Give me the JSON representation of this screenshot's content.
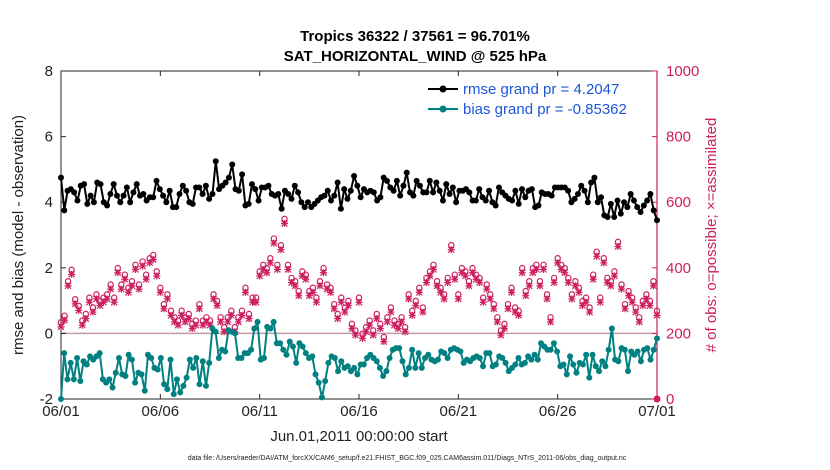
{
  "chart_data": {
    "type": "line",
    "title": "Tropics 36322 / 37561 = 96.701%",
    "subtitle": "SAT_HORIZONTAL_WIND @ 525 hPa",
    "xlabel": "Jun.01,2011 00:00:00 start",
    "ylabel_left": "rmse and bias (model - observation)",
    "ylabel_right": "# of obs: o=possible; ×=assimilated",
    "x_tick_labels": [
      "06/01",
      "06/06",
      "06/11",
      "06/16",
      "06/21",
      "06/26",
      "07/01"
    ],
    "x_tick_days": [
      0,
      5,
      10,
      15,
      20,
      25,
      30
    ],
    "xlim": [
      0,
      30
    ],
    "ylim_left": [
      -2,
      8
    ],
    "y_ticks_left": [
      -2,
      0,
      2,
      4,
      6,
      8
    ],
    "ylim_right": [
      0,
      1000
    ],
    "y_ticks_right": [
      0,
      200,
      400,
      600,
      800,
      1000
    ],
    "legend_position": "top-right",
    "series": [
      {
        "name": "rmse grand pr = 4.2047",
        "axis": "left",
        "color": "#000000",
        "values": [
          4.75,
          3.75,
          4.35,
          4.4,
          4.3,
          4.05,
          4.5,
          4.55,
          3.95,
          4.2,
          4.0,
          4.6,
          4.55,
          4.0,
          3.9,
          4.25,
          4.55,
          4.2,
          4.0,
          4.2,
          4.45,
          4.0,
          4.3,
          4.55,
          4.2,
          4.25,
          4.05,
          4.15,
          4.15,
          4.65,
          4.4,
          4.2,
          4.0,
          4.35,
          3.85,
          3.85,
          4.25,
          4.5,
          4.35,
          4.0,
          3.95,
          4.45,
          4.45,
          4.25,
          4.5,
          4.1,
          4.25,
          5.25,
          4.4,
          4.5,
          4.6,
          4.75,
          5.15,
          4.4,
          4.35,
          4.85,
          3.9,
          3.95,
          4.55,
          4.4,
          4.05,
          4.45,
          4.45,
          4.5,
          4.25,
          4.2,
          4.25,
          3.8,
          4.35,
          4.25,
          4.1,
          4.5,
          4.3,
          4.0,
          3.85,
          4.0,
          3.85,
          3.95,
          4.05,
          4.15,
          4.2,
          4.35,
          4.05,
          4.2,
          4.6,
          3.8,
          4.4,
          4.1,
          4.35,
          4.8,
          4.5,
          4.15,
          4.4,
          4.3,
          4.35,
          4.3,
          4.05,
          4.15,
          4.75,
          4.65,
          4.45,
          4.35,
          4.65,
          4.2,
          4.5,
          4.9,
          4.3,
          4.2,
          4.65,
          4.5,
          4.3,
          4.3,
          4.65,
          4.3,
          4.6,
          4.35,
          4.05,
          4.55,
          4.25,
          4.45,
          4.0,
          4.35,
          4.35,
          4.4,
          4.3,
          4.05,
          4.05,
          4.4,
          4.15,
          4.05,
          4.35,
          4.0,
          3.9,
          4.45,
          4.3,
          4.2,
          4.1,
          4.05,
          4.35,
          3.95,
          4.4,
          4.15,
          4.35,
          4.4,
          3.85,
          3.9,
          4.3,
          4.25,
          4.25,
          4.2,
          4.45,
          4.45,
          4.45,
          4.45,
          4.35,
          4.0,
          4.1,
          4.25,
          4.5,
          4.35,
          4.0,
          4.6,
          4.75,
          4.0,
          4.15,
          3.6,
          3.55,
          3.95,
          3.55,
          4.05,
          3.65,
          4.0,
          3.85,
          4.25,
          4.05,
          3.85,
          3.7,
          3.9,
          4.05,
          4.25,
          3.75,
          3.45
        ]
      },
      {
        "name": "bias grand pr = -0.85362",
        "axis": "left",
        "color": "#008080",
        "values": [
          -2.0,
          -0.6,
          -1.4,
          -0.9,
          -1.4,
          -0.75,
          -1.45,
          -0.85,
          -0.95,
          -0.7,
          -0.8,
          -0.7,
          -0.6,
          -1.4,
          -1.5,
          -1.4,
          -1.65,
          -1.2,
          -0.75,
          -1.25,
          -1.3,
          -0.65,
          -0.8,
          -1.5,
          -1.2,
          -1.25,
          -1.75,
          -0.65,
          -0.75,
          -1.05,
          -1.1,
          -0.75,
          -1.55,
          -1.7,
          -0.8,
          -1.85,
          -1.4,
          -1.8,
          -1.6,
          -1.35,
          -0.8,
          -1.05,
          -0.75,
          -1.55,
          -0.85,
          -1.6,
          -0.9,
          0.15,
          0.05,
          -0.75,
          -0.5,
          -0.55,
          0.1,
          0.05,
          0.0,
          -0.75,
          -0.75,
          -0.6,
          -0.6,
          -0.5,
          0.15,
          0.35,
          -0.8,
          -0.75,
          0.2,
          0.15,
          0.35,
          -0.3,
          -0.3,
          -0.5,
          -0.65,
          -0.25,
          -0.4,
          -0.9,
          -0.3,
          -0.4,
          -0.6,
          -0.75,
          -0.7,
          -1.25,
          -1.5,
          -1.95,
          -1.45,
          -0.9,
          -0.7,
          -0.75,
          -1.15,
          -0.85,
          -1.05,
          -1.0,
          -1.15,
          -1.05,
          -1.25,
          -0.95,
          -0.95,
          -0.75,
          -0.65,
          -0.75,
          -0.85,
          -1.05,
          -1.3,
          -1.15,
          -0.75,
          -0.5,
          -0.45,
          -0.45,
          -0.85,
          -1.25,
          -1.05,
          -0.5,
          -1.05,
          -0.6,
          -1.05,
          -0.75,
          -0.65,
          -0.8,
          -0.85,
          -0.8,
          -0.55,
          -0.6,
          -0.75,
          -0.5,
          -0.45,
          -0.5,
          -0.55,
          -0.9,
          -0.8,
          -0.85,
          -0.75,
          -0.7,
          -0.75,
          -1.0,
          -0.6,
          -0.6,
          -1.0,
          -0.95,
          -0.7,
          -0.75,
          -0.9,
          -1.15,
          -1.05,
          -0.95,
          -0.75,
          -0.95,
          -0.9,
          -0.7,
          -0.8,
          -0.65,
          -0.8,
          -0.3,
          -0.4,
          -0.5,
          -0.5,
          -0.3,
          -0.55,
          -1.0,
          -0.95,
          -1.25,
          -0.7,
          -0.95,
          -1.2,
          -0.9,
          -0.95,
          -0.65,
          -1.35,
          -0.65,
          -1.0,
          -1.15,
          -0.85,
          -1.0,
          -0.5,
          0.15,
          -0.8,
          -0.85,
          -0.45,
          -0.5,
          -1.15,
          -0.55,
          -0.65,
          -0.55,
          -0.85,
          -0.5,
          -0.45,
          -0.8,
          -0.5,
          -0.15
        ]
      },
      {
        "name": "obs possible",
        "axis": "right",
        "color": "#cc1f5f",
        "marker": "o",
        "values": [
          225,
          245,
          350,
          385,
          295,
          275,
          230,
          250,
          300,
          270,
          310,
          290,
          300,
          310,
          340,
          300,
          390,
          340,
          370,
          330,
          350,
          400,
          340,
          410,
          370,
          420,
          430,
          380,
          330,
          280,
          310,
          260,
          240,
          230,
          260,
          240,
          250,
          220,
          230,
          280,
          230,
          240,
          230,
          310,
          290,
          240,
          210,
          240,
          260,
          210,
          240,
          260,
          330,
          250,
          300,
          300,
          380,
          400,
          390,
          420,
          480,
          400,
          460,
          540,
          400,
          360,
          350,
          320,
          380,
          370,
          320,
          330,
          300,
          350,
          390,
          340,
          330,
          280,
          250,
          300,
          270,
          290,
          220,
          200,
          300,
          190,
          210,
          230,
          200,
          250,
          220,
          180,
          240,
          270,
          230,
          220,
          240,
          210,
          310,
          260,
          290,
          330,
          270,
          360,
          380,
          400,
          350,
          330,
          310,
          360,
          460,
          370,
          310,
          390,
          380,
          350,
          390,
          370,
          360,
          300,
          340,
          310,
          280,
          240,
          200,
          220,
          280,
          330,
          270,
          260,
          390,
          320,
          350,
          390,
          400,
          350,
          400,
          310,
          240,
          360,
          420,
          400,
          390,
          360,
          310,
          350,
          330,
          290,
          300,
          270,
          370,
          440,
          300,
          420,
          360,
          350,
          380,
          470,
          340,
          280,
          320,
          300,
          270,
          240,
          290,
          310,
          290,
          350,
          260
        ]
      },
      {
        "name": "obs assimilated",
        "axis": "right",
        "color": "#cc1f5f",
        "marker": "x",
        "values": [
          220,
          240,
          345,
          380,
          290,
          270,
          225,
          245,
          295,
          265,
          305,
          285,
          295,
          305,
          335,
          295,
          385,
          335,
          365,
          325,
          345,
          395,
          335,
          405,
          365,
          415,
          425,
          375,
          325,
          275,
          305,
          255,
          235,
          225,
          255,
          235,
          245,
          215,
          225,
          275,
          225,
          235,
          225,
          305,
          285,
          235,
          205,
          235,
          255,
          205,
          235,
          255,
          325,
          245,
          295,
          295,
          375,
          395,
          385,
          415,
          475,
          395,
          455,
          535,
          395,
          355,
          345,
          315,
          375,
          365,
          315,
          325,
          295,
          345,
          385,
          335,
          325,
          275,
          245,
          295,
          265,
          285,
          215,
          195,
          295,
          185,
          205,
          225,
          195,
          245,
          215,
          175,
          235,
          265,
          225,
          215,
          235,
          205,
          305,
          255,
          285,
          325,
          265,
          355,
          375,
          395,
          345,
          325,
          305,
          355,
          455,
          365,
          305,
          385,
          375,
          345,
          385,
          365,
          355,
          295,
          335,
          305,
          275,
          235,
          195,
          215,
          275,
          325,
          265,
          255,
          385,
          315,
          345,
          385,
          395,
          345,
          395,
          305,
          235,
          355,
          415,
          395,
          385,
          355,
          305,
          345,
          325,
          285,
          295,
          265,
          365,
          435,
          295,
          415,
          355,
          345,
          375,
          465,
          335,
          275,
          315,
          295,
          265,
          235,
          285,
          305,
          285,
          345,
          255
        ]
      }
    ]
  },
  "footer": "data file: /Users/raeder/DAI/ATM_forcXX/CAM6_setup/f.e21.FHIST_BGC.f09_025.CAM6assim.011/Diags_NTrS_2011-06/obs_diag_output.nc"
}
